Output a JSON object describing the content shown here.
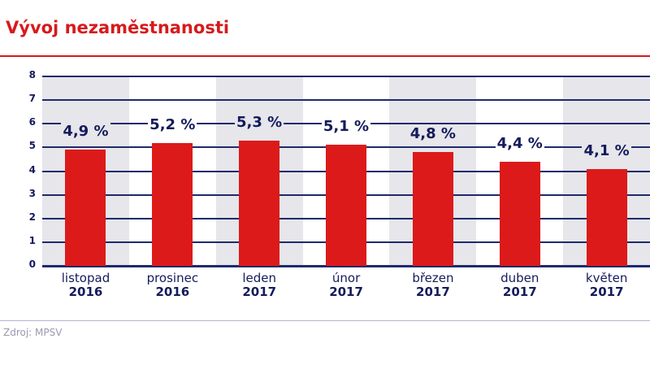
{
  "header": {
    "title": "Vývoj nezaměstnanosti"
  },
  "footer": {
    "source": "Zdroj: MPSV"
  },
  "colors": {
    "bar": "#dc1a1a",
    "title": "#d7191c",
    "text": "#141b5c",
    "band": "#e6e6eb",
    "grid": "#1f2a6b"
  },
  "chart_data": {
    "type": "bar",
    "title": "Vývoj nezaměstnanosti",
    "xlabel": "",
    "ylabel": "",
    "ylim": [
      0,
      8
    ],
    "yticks": [
      0,
      1,
      2,
      3,
      4,
      5,
      6,
      7,
      8
    ],
    "grid": true,
    "legend": null,
    "categories": [
      "listopad 2016",
      "prosinec 2016",
      "leden 2017",
      "únor 2017",
      "březen 2017",
      "duben 2017",
      "květen 2017"
    ],
    "values": [
      4.9,
      5.2,
      5.3,
      5.1,
      4.8,
      4.4,
      4.1
    ],
    "data_labels": [
      "4,9 %",
      "5,2 %",
      "5,3 %",
      "5,1 %",
      "4,8 %",
      "4,4 %",
      "4,1 %"
    ],
    "source": "Zdroj: MPSV"
  },
  "axis": {
    "y_ticks": [
      "0",
      "1",
      "2",
      "3",
      "4",
      "5",
      "6",
      "7",
      "8"
    ]
  },
  "columns": [
    {
      "month": "listopad",
      "year": "2016",
      "label": "4,9 %"
    },
    {
      "month": "prosinec",
      "year": "2016",
      "label": "5,2 %"
    },
    {
      "month": "leden",
      "year": "2017",
      "label": "5,3 %"
    },
    {
      "month": "únor",
      "year": "2017",
      "label": "5,1 %"
    },
    {
      "month": "březen",
      "year": "2017",
      "label": "4,8 %"
    },
    {
      "month": "duben",
      "year": "2017",
      "label": "4,4 %"
    },
    {
      "month": "květen",
      "year": "2017",
      "label": "4,1 %"
    }
  ]
}
